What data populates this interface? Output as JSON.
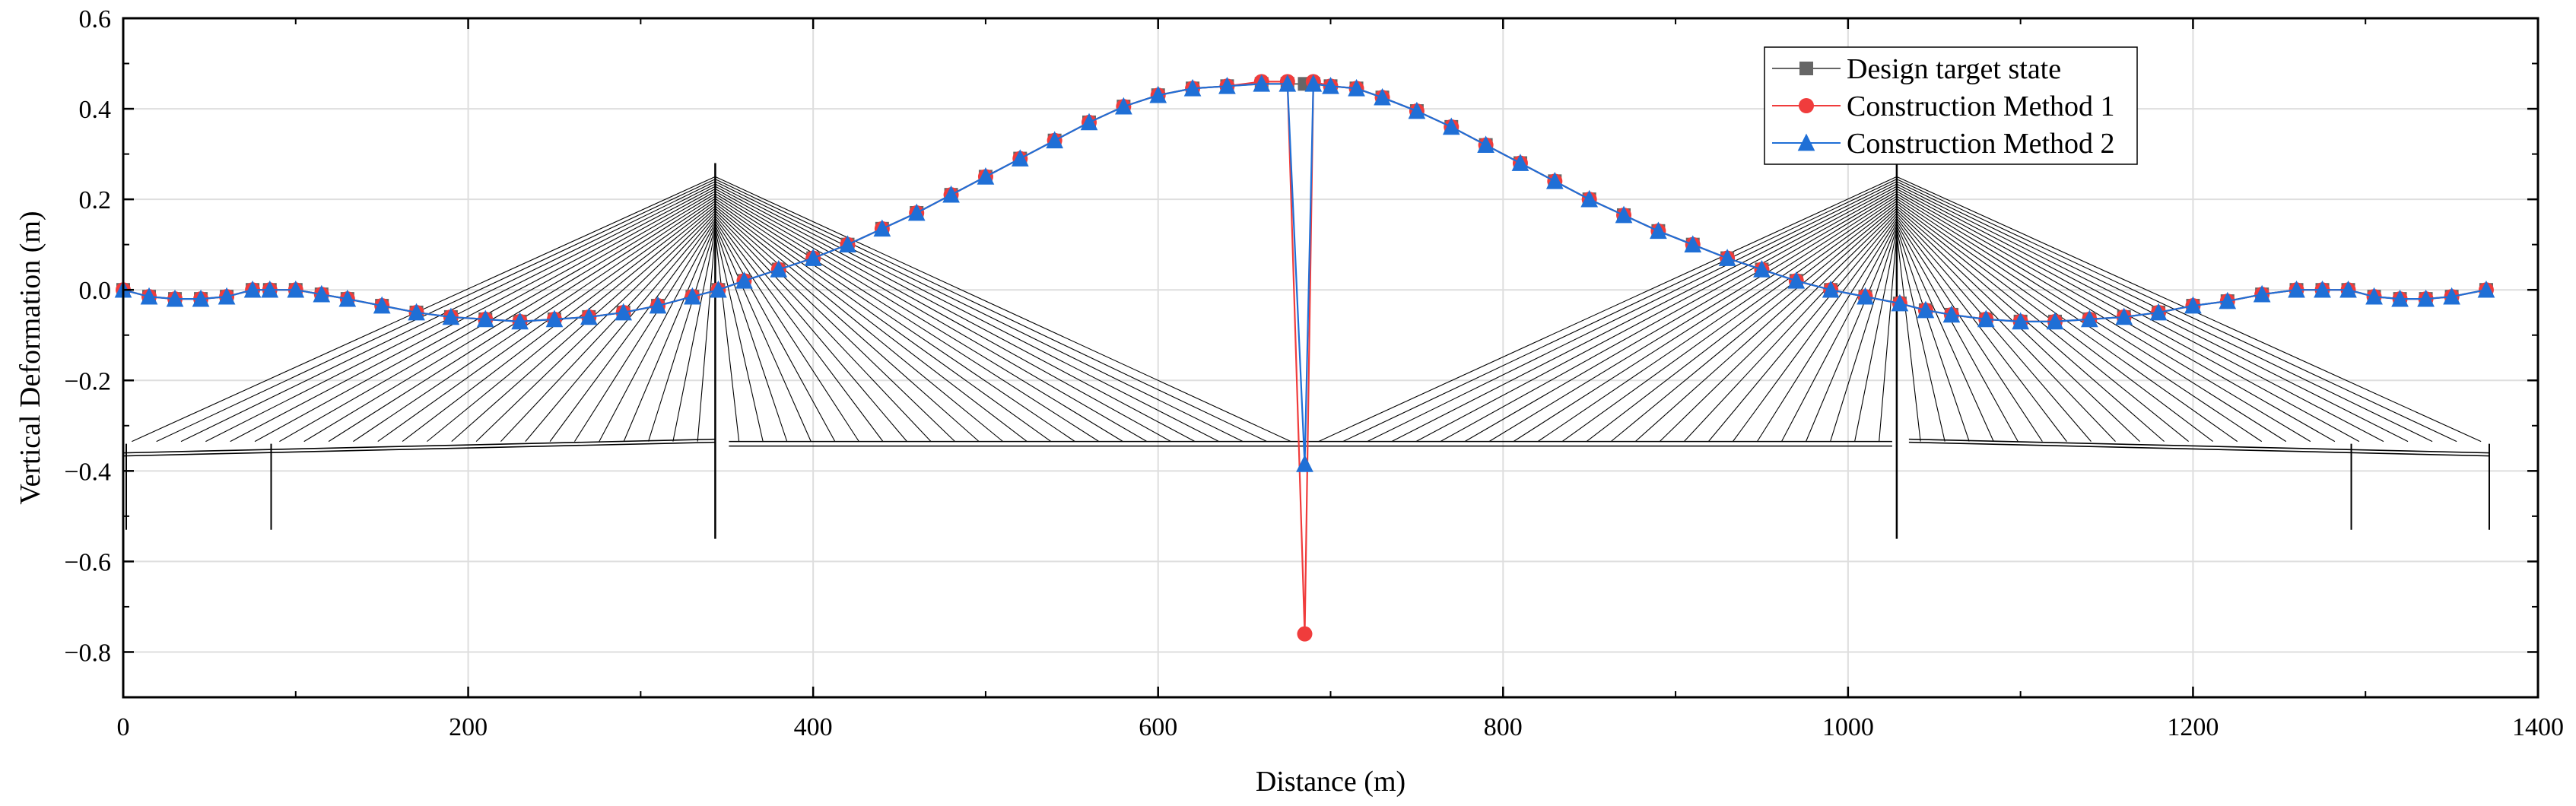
{
  "chart_data": {
    "type": "line",
    "xlabel": "Distance (m)",
    "ylabel": "Vertical Deformation  (m)",
    "xlim": [
      0,
      1400
    ],
    "ylim": [
      -0.9,
      0.6
    ],
    "xticks": [
      "0",
      "200",
      "400",
      "600",
      "800",
      "1000",
      "1200",
      "1400"
    ],
    "yticks": [
      "0.6",
      "0.4",
      "0.2",
      "0.0",
      "-0.2",
      "-0.4",
      "-0.6",
      "-0.8"
    ],
    "grid": true,
    "legend_position": "top-right (inside)",
    "background_drawing": "cable-stayed bridge elevation schematic (two pylons, fan cables, deck, piers)",
    "x": [
      0,
      15,
      30,
      45,
      60,
      75,
      85,
      100,
      115,
      130,
      150,
      170,
      190,
      210,
      230,
      250,
      270,
      290,
      310,
      330,
      345,
      360,
      380,
      400,
      420,
      440,
      460,
      480,
      500,
      520,
      540,
      560,
      580,
      600,
      620,
      640,
      660,
      675,
      685,
      690,
      700,
      715,
      730,
      750,
      770,
      790,
      810,
      830,
      850,
      870,
      890,
      910,
      930,
      950,
      970,
      990,
      1010,
      1030,
      1045,
      1060,
      1080,
      1100,
      1120,
      1140,
      1160,
      1180,
      1200,
      1220,
      1240,
      1260,
      1275,
      1290,
      1305,
      1320,
      1335,
      1350,
      1370
    ],
    "series": [
      {
        "name": "Design target state",
        "color": "#666666",
        "marker": "square",
        "y": [
          0.0,
          -0.015,
          -0.02,
          -0.02,
          -0.015,
          0.0,
          0.0,
          0.0,
          -0.01,
          -0.02,
          -0.035,
          -0.05,
          -0.06,
          -0.065,
          -0.07,
          -0.065,
          -0.06,
          -0.05,
          -0.035,
          -0.015,
          0.0,
          0.02,
          0.045,
          0.07,
          0.1,
          0.135,
          0.17,
          0.21,
          0.25,
          0.29,
          0.33,
          0.37,
          0.405,
          0.43,
          0.445,
          0.45,
          0.455,
          0.455,
          0.455,
          0.455,
          0.45,
          0.445,
          0.425,
          0.395,
          0.36,
          0.32,
          0.28,
          0.24,
          0.2,
          0.165,
          0.13,
          0.1,
          0.07,
          0.045,
          0.02,
          0.0,
          -0.015,
          -0.03,
          -0.045,
          -0.055,
          -0.065,
          -0.07,
          -0.07,
          -0.065,
          -0.06,
          -0.05,
          -0.035,
          -0.025,
          -0.01,
          0.0,
          0.0,
          0.0,
          -0.015,
          -0.02,
          -0.02,
          -0.015,
          0.0
        ]
      },
      {
        "name": "Construction Method 1",
        "color": "#f03c3c",
        "marker": "circle",
        "y": [
          0.0,
          -0.015,
          -0.02,
          -0.02,
          -0.015,
          0.0,
          0.0,
          0.0,
          -0.01,
          -0.02,
          -0.035,
          -0.05,
          -0.06,
          -0.065,
          -0.07,
          -0.065,
          -0.06,
          -0.05,
          -0.035,
          -0.015,
          0.0,
          0.02,
          0.045,
          0.07,
          0.1,
          0.135,
          0.17,
          0.21,
          0.25,
          0.29,
          0.33,
          0.37,
          0.405,
          0.43,
          0.445,
          0.45,
          0.46,
          0.46,
          -0.76,
          0.46,
          0.45,
          0.445,
          0.425,
          0.395,
          0.36,
          0.32,
          0.28,
          0.24,
          0.2,
          0.165,
          0.13,
          0.1,
          0.07,
          0.045,
          0.02,
          0.0,
          -0.015,
          -0.03,
          -0.045,
          -0.055,
          -0.065,
          -0.07,
          -0.07,
          -0.065,
          -0.06,
          -0.05,
          -0.035,
          -0.025,
          -0.01,
          0.0,
          0.0,
          0.0,
          -0.015,
          -0.02,
          -0.02,
          -0.015,
          0.0
        ]
      },
      {
        "name": "Construction Method 2",
        "color": "#1f6fd6",
        "marker": "triangle",
        "y": [
          0.0,
          -0.015,
          -0.02,
          -0.02,
          -0.015,
          0.0,
          0.0,
          0.0,
          -0.01,
          -0.02,
          -0.035,
          -0.05,
          -0.06,
          -0.065,
          -0.07,
          -0.065,
          -0.06,
          -0.05,
          -0.035,
          -0.015,
          0.0,
          0.02,
          0.045,
          0.07,
          0.1,
          0.135,
          0.17,
          0.21,
          0.25,
          0.29,
          0.33,
          0.37,
          0.405,
          0.43,
          0.445,
          0.45,
          0.455,
          0.455,
          -0.385,
          0.455,
          0.45,
          0.445,
          0.425,
          0.395,
          0.36,
          0.32,
          0.28,
          0.24,
          0.2,
          0.165,
          0.13,
          0.1,
          0.07,
          0.045,
          0.02,
          0.0,
          -0.015,
          -0.03,
          -0.045,
          -0.055,
          -0.065,
          -0.07,
          -0.07,
          -0.065,
          -0.06,
          -0.05,
          -0.035,
          -0.025,
          -0.01,
          0.0,
          0.0,
          0.0,
          -0.015,
          -0.02,
          -0.02,
          -0.015,
          0.0
        ]
      }
    ],
    "bridge_schematic": {
      "deck_y": -0.34,
      "pylon_tip_y": 0.28,
      "pylon_base_y": -0.55,
      "pylons_x": [
        345,
        1030
      ],
      "auxiliary_piers_x": [
        0,
        84,
        1290,
        1370
      ],
      "auxiliary_pier_base_y": -0.53,
      "cable_anchor_y": 0.25,
      "left_span_end_x": 0,
      "midspan_x": 685,
      "right_span_end_x": 1372,
      "cable_count_per_fan": 24
    }
  }
}
